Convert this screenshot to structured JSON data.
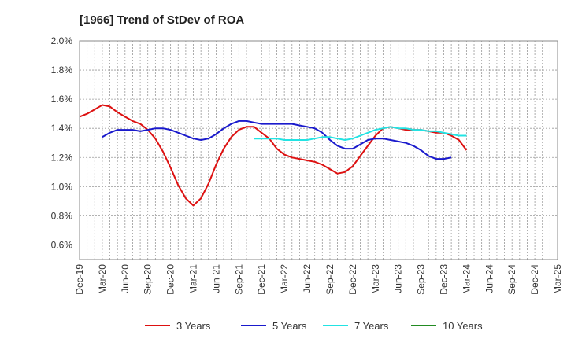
{
  "chart_data": {
    "type": "line",
    "title": "[1966]  Trend of StDev of ROA",
    "xlabel": "",
    "ylabel": "",
    "ylim": [
      0.5,
      2.0
    ],
    "yticks": [
      "0.6%",
      "0.8%",
      "1.0%",
      "1.2%",
      "1.4%",
      "1.6%",
      "1.8%",
      "2.0%"
    ],
    "xticks": [
      "Dec-19",
      "Mar-20",
      "Jun-20",
      "Sep-20",
      "Dec-20",
      "Mar-21",
      "Jun-21",
      "Sep-21",
      "Dec-21",
      "Mar-22",
      "Jun-22",
      "Sep-22",
      "Dec-22",
      "Mar-23",
      "Jun-23",
      "Sep-23",
      "Dec-23",
      "Mar-24",
      "Jun-24",
      "Sep-24",
      "Dec-24",
      "Mar-25"
    ],
    "grid": true,
    "legend_position": "bottom",
    "series": [
      {
        "name": "3 Years",
        "color": "#dd1111",
        "points": [
          [
            0,
            1.48
          ],
          [
            1,
            1.5
          ],
          [
            2,
            1.53
          ],
          [
            3,
            1.56
          ],
          [
            4,
            1.55
          ],
          [
            5,
            1.51
          ],
          [
            6,
            1.48
          ],
          [
            7,
            1.45
          ],
          [
            8,
            1.43
          ],
          [
            9,
            1.39
          ],
          [
            10,
            1.33
          ],
          [
            11,
            1.24
          ],
          [
            12,
            1.13
          ],
          [
            13,
            1.01
          ],
          [
            14,
            0.92
          ],
          [
            15,
            0.87
          ],
          [
            16,
            0.92
          ],
          [
            17,
            1.02
          ],
          [
            18,
            1.15
          ],
          [
            19,
            1.26
          ],
          [
            20,
            1.34
          ],
          [
            21,
            1.39
          ],
          [
            22,
            1.41
          ],
          [
            23,
            1.41
          ],
          [
            24,
            1.37
          ],
          [
            25,
            1.33
          ],
          [
            26,
            1.26
          ],
          [
            27,
            1.22
          ],
          [
            28,
            1.2
          ],
          [
            29,
            1.19
          ],
          [
            30,
            1.18
          ],
          [
            31,
            1.17
          ],
          [
            32,
            1.15
          ],
          [
            33,
            1.12
          ],
          [
            34,
            1.09
          ],
          [
            35,
            1.1
          ],
          [
            36,
            1.14
          ],
          [
            37,
            1.21
          ],
          [
            38,
            1.28
          ],
          [
            39,
            1.35
          ],
          [
            40,
            1.4
          ],
          [
            41,
            1.41
          ],
          [
            42,
            1.4
          ],
          [
            43,
            1.39
          ],
          [
            44,
            1.39
          ],
          [
            45,
            1.39
          ],
          [
            46,
            1.38
          ],
          [
            47,
            1.37
          ],
          [
            48,
            1.37
          ],
          [
            49,
            1.35
          ],
          [
            50,
            1.32
          ],
          [
            51,
            1.25
          ]
        ]
      },
      {
        "name": "5 Years",
        "color": "#1a1acc",
        "points": [
          [
            3,
            1.34
          ],
          [
            4,
            1.37
          ],
          [
            5,
            1.39
          ],
          [
            6,
            1.39
          ],
          [
            7,
            1.39
          ],
          [
            8,
            1.38
          ],
          [
            9,
            1.39
          ],
          [
            10,
            1.4
          ],
          [
            11,
            1.4
          ],
          [
            12,
            1.39
          ],
          [
            13,
            1.37
          ],
          [
            14,
            1.35
          ],
          [
            15,
            1.33
          ],
          [
            16,
            1.32
          ],
          [
            17,
            1.33
          ],
          [
            18,
            1.36
          ],
          [
            19,
            1.4
          ],
          [
            20,
            1.43
          ],
          [
            21,
            1.45
          ],
          [
            22,
            1.45
          ],
          [
            23,
            1.44
          ],
          [
            24,
            1.43
          ],
          [
            25,
            1.43
          ],
          [
            26,
            1.43
          ],
          [
            27,
            1.43
          ],
          [
            28,
            1.43
          ],
          [
            29,
            1.42
          ],
          [
            30,
            1.41
          ],
          [
            31,
            1.4
          ],
          [
            32,
            1.37
          ],
          [
            33,
            1.32
          ],
          [
            34,
            1.28
          ],
          [
            35,
            1.26
          ],
          [
            36,
            1.26
          ],
          [
            37,
            1.29
          ],
          [
            38,
            1.32
          ],
          [
            39,
            1.33
          ],
          [
            40,
            1.33
          ],
          [
            41,
            1.32
          ],
          [
            42,
            1.31
          ],
          [
            43,
            1.3
          ],
          [
            44,
            1.28
          ],
          [
            45,
            1.25
          ],
          [
            46,
            1.21
          ],
          [
            47,
            1.19
          ],
          [
            48,
            1.19
          ],
          [
            49,
            1.2
          ]
        ]
      },
      {
        "name": "7 Years",
        "color": "#22e3e3",
        "points": [
          [
            23,
            1.33
          ],
          [
            24,
            1.33
          ],
          [
            25,
            1.33
          ],
          [
            26,
            1.33
          ],
          [
            27,
            1.32
          ],
          [
            28,
            1.32
          ],
          [
            29,
            1.32
          ],
          [
            30,
            1.32
          ],
          [
            31,
            1.33
          ],
          [
            32,
            1.34
          ],
          [
            33,
            1.34
          ],
          [
            34,
            1.33
          ],
          [
            35,
            1.32
          ],
          [
            36,
            1.33
          ],
          [
            37,
            1.35
          ],
          [
            38,
            1.37
          ],
          [
            39,
            1.39
          ],
          [
            40,
            1.4
          ],
          [
            41,
            1.41
          ],
          [
            42,
            1.4
          ],
          [
            43,
            1.4
          ],
          [
            44,
            1.39
          ],
          [
            45,
            1.39
          ],
          [
            46,
            1.38
          ],
          [
            47,
            1.38
          ],
          [
            48,
            1.37
          ],
          [
            49,
            1.36
          ],
          [
            50,
            1.35
          ],
          [
            51,
            1.35
          ]
        ]
      },
      {
        "name": "10 Years",
        "color": "#228b22",
        "points": []
      }
    ]
  }
}
